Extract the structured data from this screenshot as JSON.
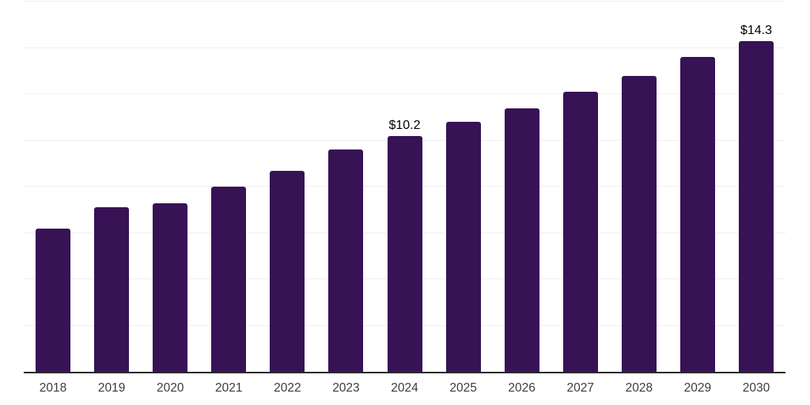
{
  "chart_data": {
    "type": "bar",
    "title": "",
    "xlabel": "",
    "ylabel": "",
    "categories": [
      "2018",
      "2019",
      "2020",
      "2021",
      "2022",
      "2023",
      "2024",
      "2025",
      "2026",
      "2027",
      "2028",
      "2029",
      "2030"
    ],
    "values": [
      6.2,
      7.1,
      7.3,
      8.0,
      8.7,
      9.6,
      10.2,
      10.8,
      11.4,
      12.1,
      12.8,
      13.6,
      14.3
    ],
    "data_labels": {
      "2024": "$10.2",
      "2030": "$14.3"
    },
    "ylim": [
      0,
      16
    ],
    "gridline_step": 2,
    "grid": true,
    "legend": false,
    "colors": {
      "bar": "#371254",
      "axis_line": "#2b2b2b",
      "gridline": "#efefef",
      "tick_label": "#3d3d3d",
      "data_label": "#000000"
    }
  }
}
